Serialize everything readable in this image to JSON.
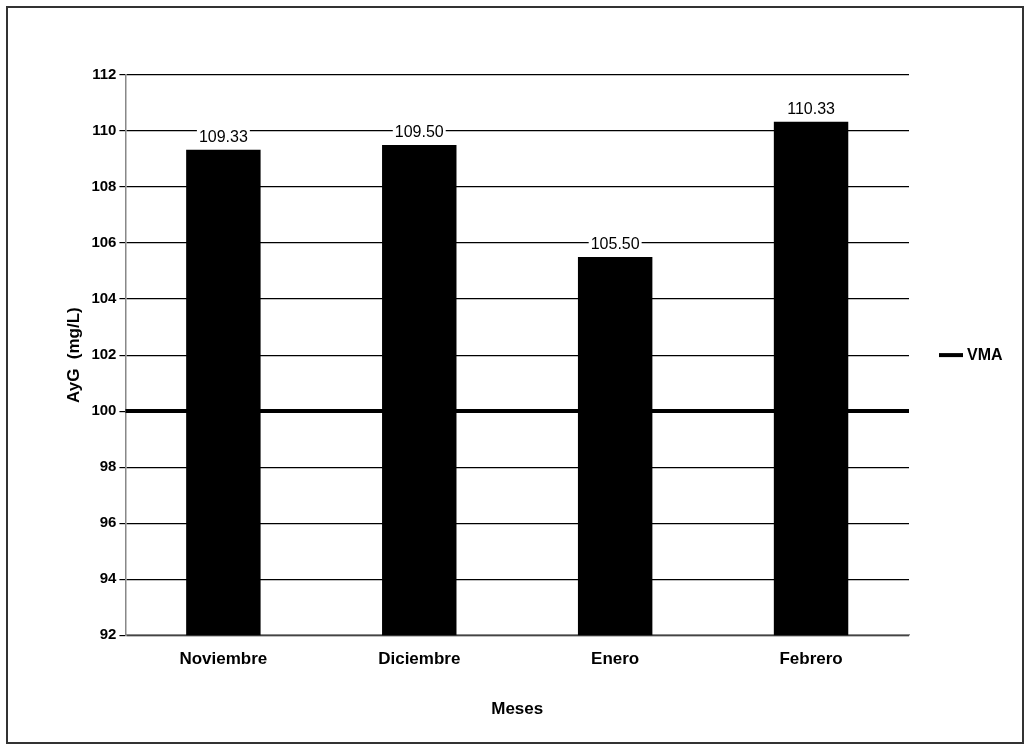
{
  "chart_data": {
    "type": "bar",
    "categories": [
      "Noviembre",
      "Diciembre",
      "Enero",
      "Febrero"
    ],
    "values": [
      109.33,
      109.5,
      105.5,
      110.33
    ],
    "color": "#000000",
    "value_labels": [
      "109.33",
      "109.50",
      "105.50",
      "110.33"
    ],
    "xlabel": "Meses",
    "ylabel": "AyG  (mg/L)",
    "ylim": [
      92,
      112
    ],
    "yticks": [
      92,
      94,
      96,
      98,
      100,
      102,
      104,
      106,
      108,
      110,
      112
    ],
    "grid": "y",
    "ref_lines": [
      {
        "axis": "y",
        "value": 100,
        "label": "VMA",
        "color": "#000000"
      }
    ],
    "legend": "right"
  }
}
